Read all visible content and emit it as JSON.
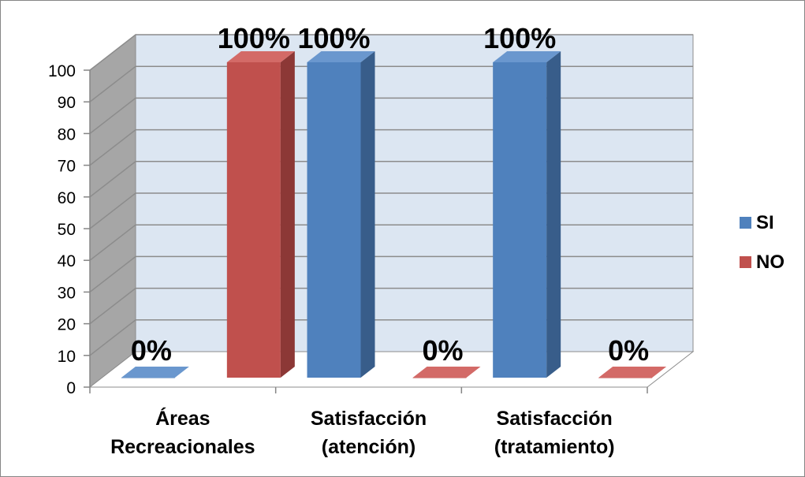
{
  "chart_data": {
    "type": "bar",
    "categories": [
      [
        "Áreas",
        "Recreacionales"
      ],
      [
        "Satisfacción",
        "(atención)"
      ],
      [
        "Satisfacción",
        "(tratamiento)"
      ]
    ],
    "series": [
      {
        "name": "SI",
        "values": [
          0,
          100,
          100
        ],
        "labels": [
          "0%",
          "100%",
          "100%"
        ],
        "color": "#4F81BD",
        "side_color": "#385D8A",
        "top_color": "#6A97CE"
      },
      {
        "name": "NO",
        "values": [
          100,
          0,
          0
        ],
        "labels": [
          "100%",
          "0%",
          "0%"
        ],
        "color": "#C0504D",
        "side_color": "#8C3836",
        "top_color": "#D36A67"
      }
    ],
    "yticks": [
      "0",
      "10",
      "20",
      "30",
      "40",
      "50",
      "60",
      "70",
      "80",
      "90",
      "100"
    ],
    "ylim": [
      0,
      100
    ],
    "grid": true,
    "legend_position": "right",
    "back_wall_color": "#DCE6F2",
    "side_wall_color": "#A6A6A6"
  }
}
